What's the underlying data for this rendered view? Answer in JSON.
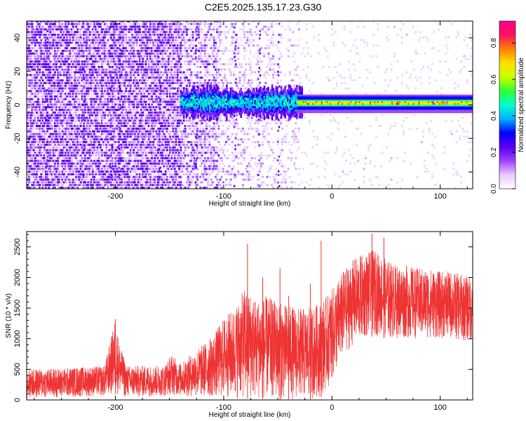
{
  "title": "C2E5.2025.135.17.23.G30",
  "chart_data": [
    {
      "type": "heatmap",
      "xlabel": "Height of straight line (km)",
      "ylabel": "Frequency (Hz)",
      "xlim": [
        -282,
        130
      ],
      "ylim": [
        -50,
        50
      ],
      "xticks": [
        -200,
        -100,
        0,
        100
      ],
      "yticks": [
        -40,
        -20,
        0,
        20,
        40
      ],
      "colorbar": {
        "label": "Normalized spectral amplitude",
        "range": [
          0,
          0.92
        ],
        "ticks": [
          "0.0",
          "0.2",
          "0.4",
          "0.6",
          "0.8"
        ],
        "colormap": [
          "#ffffff",
          "#e9c9ff",
          "#a040ff",
          "#5500ee",
          "#0000ff",
          "#00b4ff",
          "#00ffd0",
          "#30ff30",
          "#c8ff00",
          "#ffe000",
          "#ff8000",
          "#ff1060",
          "#ff0090"
        ]
      },
      "description_regions": {
        "broadband_noise_x": [
          -282,
          -30
        ],
        "carrier_line_x": [
          -20,
          130
        ],
        "carrier_frequency_hz": 1
      }
    },
    {
      "type": "line",
      "xlabel": "Height of straight line (km)",
      "ylabel": "SNR (10 * v/v)",
      "xlim": [
        -282,
        130
      ],
      "ylim": [
        0,
        2750
      ],
      "xticks": [
        -200,
        -100,
        0,
        100
      ],
      "yticks": [
        0,
        500,
        1000,
        1500,
        2000,
        2500
      ],
      "color": "#ee3333",
      "envelope": {
        "x": [
          -282,
          -250,
          -210,
          -203,
          -200,
          -197,
          -190,
          -155,
          -148,
          -140,
          -120,
          -110,
          -100,
          -90,
          -80,
          -70,
          -60,
          -50,
          -40,
          -30,
          -20,
          -10,
          0,
          10,
          20,
          30,
          40,
          50,
          60,
          70,
          80,
          90,
          100,
          110,
          120,
          130
        ],
        "low": [
          20,
          40,
          60,
          80,
          100,
          80,
          40,
          60,
          80,
          60,
          40,
          40,
          30,
          20,
          20,
          20,
          10,
          10,
          10,
          10,
          10,
          50,
          300,
          700,
          900,
          1000,
          1050,
          1000,
          1000,
          1000,
          1000,
          1000,
          1000,
          1000,
          950,
          950
        ],
        "high": [
          500,
          520,
          560,
          1100,
          1350,
          1000,
          560,
          560,
          750,
          600,
          900,
          1050,
          1350,
          1500,
          1850,
          1650,
          1700,
          1600,
          1550,
          1500,
          1500,
          1600,
          1800,
          2100,
          2300,
          2400,
          2450,
          2300,
          2200,
          2200,
          2150,
          2150,
          2100,
          2100,
          2050,
          2000
        ]
      },
      "spikes": [
        {
          "x": -200,
          "y": 1320
        },
        {
          "x": -78,
          "y": 2550
        },
        {
          "x": -64,
          "y": 2000
        },
        {
          "x": -48,
          "y": 2150
        },
        {
          "x": -40,
          "y": 1700
        },
        {
          "x": -20,
          "y": 1900
        },
        {
          "x": -10,
          "y": 2600
        },
        {
          "x": 37,
          "y": 2720
        },
        {
          "x": 48,
          "y": 2650
        }
      ]
    }
  ]
}
